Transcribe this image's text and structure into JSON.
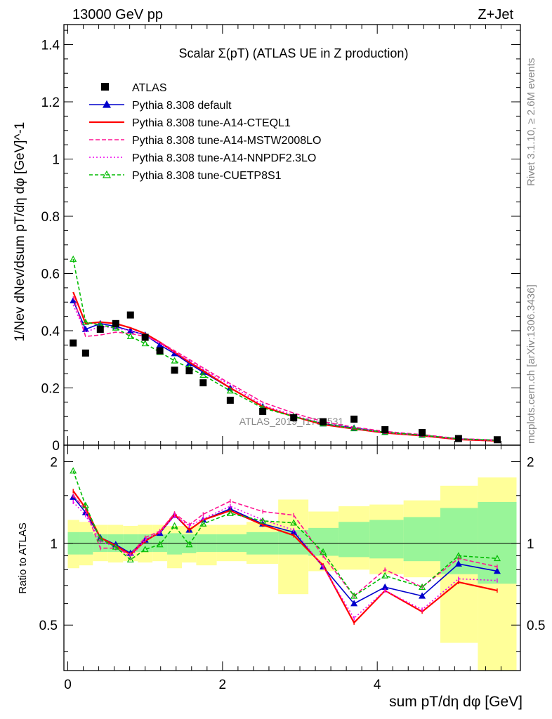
{
  "header": {
    "left": "13000 GeV pp",
    "right": "Z+Jet"
  },
  "side": {
    "rivet": "Rivet 3.1.10, ≥ 2.6M events",
    "mcplots": "mcplots.cern.ch [arXiv:1306.3436]"
  },
  "chart_data": {
    "type": "line",
    "title": "Scalar Σ(pT) (ATLAS UE in Z production)",
    "watermark": "ATLAS_2019_I1736531",
    "xlabel": "sum pT/dη dφ [GeV]",
    "ylabel": "1/Nev dNev/dsum pT/dη dφ [GeV]^-1",
    "ratio_ylabel": "Ratio to ATLAS",
    "xlim": [
      -0.05,
      5.85
    ],
    "ylim": [
      0,
      1.47
    ],
    "ratio_ylim": [
      0.34,
      2.3
    ],
    "x_ticks": [
      "0",
      "2",
      "4"
    ],
    "y_ticks": [
      "0",
      "0.2",
      "0.4",
      "0.6",
      "0.8",
      "1",
      "1.2",
      "1.4"
    ],
    "ratio_ticks": [
      "0.5",
      "1",
      "2"
    ],
    "legend_position": "top-left",
    "x": [
      0.07,
      0.23,
      0.42,
      0.62,
      0.81,
      1.0,
      1.19,
      1.38,
      1.57,
      1.75,
      2.1,
      2.52,
      2.92,
      3.3,
      3.7,
      4.1,
      4.58,
      5.05,
      5.55
    ],
    "data": {
      "name": "ATLAS",
      "values": [
        0.357,
        0.322,
        0.405,
        0.425,
        0.455,
        0.377,
        0.33,
        0.262,
        0.26,
        0.218,
        0.157,
        0.118,
        0.096,
        0.082,
        0.091,
        0.054,
        0.044,
        0.023,
        0.019
      ]
    },
    "band_green": [
      [
        0.91,
        1.1
      ],
      [
        0.91,
        1.1
      ],
      [
        0.93,
        1.08
      ],
      [
        0.93,
        1.08
      ],
      [
        0.93,
        1.08
      ],
      [
        0.93,
        1.08
      ],
      [
        0.93,
        1.08
      ],
      [
        0.91,
        1.09
      ],
      [
        0.92,
        1.08
      ],
      [
        0.93,
        1.08
      ],
      [
        0.93,
        1.08
      ],
      [
        0.91,
        1.1
      ],
      [
        0.91,
        1.12
      ],
      [
        0.9,
        1.14
      ],
      [
        0.89,
        1.2
      ],
      [
        0.88,
        1.22
      ],
      [
        0.86,
        1.25
      ],
      [
        0.77,
        1.35
      ],
      [
        0.71,
        1.42
      ]
    ],
    "band_yellow": [
      [
        0.81,
        1.22
      ],
      [
        0.83,
        1.2
      ],
      [
        0.86,
        1.17
      ],
      [
        0.85,
        1.17
      ],
      [
        0.86,
        1.16
      ],
      [
        0.85,
        1.17
      ],
      [
        0.86,
        1.17
      ],
      [
        0.81,
        1.16
      ],
      [
        0.85,
        1.16
      ],
      [
        0.83,
        1.17
      ],
      [
        0.86,
        1.17
      ],
      [
        0.84,
        1.2
      ],
      [
        0.65,
        1.45
      ],
      [
        0.79,
        1.31
      ],
      [
        0.8,
        1.37
      ],
      [
        0.77,
        1.39
      ],
      [
        0.75,
        1.44
      ],
      [
        0.43,
        1.63
      ],
      [
        0.34,
        1.75
      ]
    ],
    "series": [
      {
        "name": "Pythia 8.308 default",
        "color": "#0000cc",
        "dash": "none",
        "marker": "triangle-filled",
        "values": [
          0.505,
          0.405,
          0.425,
          0.415,
          0.4,
          0.385,
          0.35,
          0.32,
          0.285,
          0.255,
          0.2,
          0.135,
          0.1,
          0.075,
          0.06,
          0.045,
          0.035,
          0.022,
          0.017
        ],
        "ratio": [
          1.48,
          1.3,
          1.05,
          0.99,
          0.92,
          1.03,
          1.09,
          1.27,
          1.12,
          1.22,
          1.34,
          1.18,
          1.1,
          0.82,
          0.6,
          0.69,
          0.64,
          0.84,
          0.79
        ]
      },
      {
        "name": "Pythia 8.308 tune-A14-CTEQL1",
        "color": "#ff0000",
        "dash": "none",
        "marker": "none",
        "values": [
          0.535,
          0.425,
          0.43,
          0.425,
          0.41,
          0.39,
          0.36,
          0.325,
          0.29,
          0.26,
          0.2,
          0.135,
          0.1,
          0.072,
          0.057,
          0.043,
          0.033,
          0.02,
          0.015
        ],
        "ratio": [
          1.56,
          1.35,
          1.05,
          0.98,
          0.91,
          1.02,
          1.1,
          1.28,
          1.12,
          1.22,
          1.32,
          1.17,
          1.07,
          0.83,
          0.51,
          0.67,
          0.56,
          0.72,
          0.67
        ]
      },
      {
        "name": "Pythia 8.308 tune-A14-MSTW2008LO",
        "color": "#ff1493",
        "dash": "6,3",
        "marker": "none",
        "values": [
          0.52,
          0.38,
          0.385,
          0.395,
          0.39,
          0.38,
          0.36,
          0.33,
          0.3,
          0.27,
          0.215,
          0.15,
          0.112,
          0.082,
          0.063,
          0.048,
          0.037,
          0.023,
          0.018
        ],
        "ratio": [
          1.5,
          1.33,
          0.96,
          0.96,
          0.91,
          1.05,
          1.11,
          1.29,
          1.17,
          1.28,
          1.43,
          1.31,
          1.27,
          0.9,
          0.64,
          0.8,
          0.69,
          0.88,
          0.82
        ]
      },
      {
        "name": "Pythia 8.308 tune-A14-NNPDF2.3LO",
        "color": "#ee00ee",
        "dash": "2,3",
        "marker": "none",
        "values": [
          0.49,
          0.395,
          0.415,
          0.41,
          0.4,
          0.385,
          0.355,
          0.325,
          0.295,
          0.265,
          0.21,
          0.14,
          0.104,
          0.075,
          0.058,
          0.044,
          0.034,
          0.021,
          0.016
        ],
        "ratio": [
          1.42,
          1.27,
          1.02,
          0.97,
          0.89,
          1.03,
          1.1,
          1.26,
          1.16,
          1.23,
          1.37,
          1.22,
          1.12,
          0.82,
          0.53,
          0.67,
          0.57,
          0.74,
          0.73
        ]
      },
      {
        "name": "Pythia 8.308 tune-CUETP8S1",
        "color": "#00bb00",
        "dash": "5,3",
        "marker": "triangle-open",
        "values": [
          0.65,
          0.43,
          0.42,
          0.41,
          0.38,
          0.355,
          0.325,
          0.295,
          0.27,
          0.245,
          0.19,
          0.13,
          0.1,
          0.075,
          0.058,
          0.045,
          0.035,
          0.022,
          0.017
        ],
        "ratio": [
          1.85,
          1.38,
          1.04,
          0.97,
          0.87,
          0.95,
          0.99,
          1.16,
          0.99,
          1.18,
          1.29,
          1.21,
          1.19,
          0.93,
          0.64,
          0.76,
          0.69,
          0.9,
          0.88
        ]
      }
    ]
  }
}
